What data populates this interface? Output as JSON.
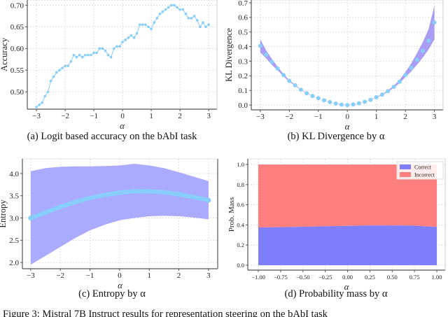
{
  "figure_caption": "Figure 3: Mistral 7B Instruct results for representation steering on the bAbI task",
  "colors": {
    "line": "#87cefa",
    "band_kl": "#9b8cf2",
    "band_entropy": "#aaaaff",
    "correct": "#7f7ffb",
    "incorrect": "#ff7f7f"
  },
  "chart_data": [
    {
      "type": "line",
      "title": "(a) Logit based accuracy on the bAbI task",
      "xlabel": "α",
      "ylabel": "Accuracy",
      "x_start": -3,
      "x_step": 0.1,
      "y": [
        0.465,
        0.47,
        0.475,
        0.49,
        0.5,
        0.525,
        0.535,
        0.545,
        0.55,
        0.555,
        0.56,
        0.56,
        0.57,
        0.585,
        0.58,
        0.585,
        0.58,
        0.585,
        0.585,
        0.585,
        0.59,
        0.59,
        0.6,
        0.6,
        0.595,
        0.585,
        0.58,
        0.6,
        0.605,
        0.605,
        0.615,
        0.62,
        0.625,
        0.63,
        0.625,
        0.635,
        0.655,
        0.655,
        0.655,
        0.65,
        0.645,
        0.66,
        0.67,
        0.68,
        0.685,
        0.69,
        0.695,
        0.7,
        0.7,
        0.695,
        0.69,
        0.69,
        0.68,
        0.67,
        0.67,
        0.675,
        0.665,
        0.65,
        0.66,
        0.65,
        0.655
      ],
      "xlim": [
        -3.32,
        3.29
      ],
      "ylim": [
        0.46,
        0.712
      ],
      "xticks": [
        -3,
        -2,
        -1,
        0,
        1,
        2,
        3
      ],
      "xtick_labels": [
        "−3",
        "−2",
        "−1",
        "0",
        "1",
        "2",
        "3"
      ],
      "yticks": [
        0.5,
        0.55,
        0.6,
        0.65,
        0.7
      ],
      "ytick_labels": [
        "0.50",
        "0.55",
        "0.60",
        "0.65",
        "0.70"
      ],
      "grid": true
    },
    {
      "type": "scatter",
      "title": "(b) KL Divergence by α",
      "xlabel": "α",
      "ylabel": "KL Divergence",
      "x_start": -3,
      "x_step": 0.2,
      "y": [
        0.405,
        0.345,
        0.295,
        0.25,
        0.205,
        0.165,
        0.135,
        0.105,
        0.08,
        0.062,
        0.047,
        0.032,
        0.02,
        0.01,
        0.003,
        0.0,
        0.004,
        0.012,
        0.022,
        0.036,
        0.053,
        0.072,
        0.095,
        0.125,
        0.16,
        0.205,
        0.255,
        0.31,
        0.37,
        0.44,
        0.565
      ],
      "band_upper": [
        0.45,
        0.375,
        0.315,
        0.262,
        0.212,
        0.17,
        0.138,
        0.107,
        0.082,
        0.063,
        0.048,
        0.033,
        0.021,
        0.011,
        0.004,
        0.001,
        0.005,
        0.013,
        0.023,
        0.037,
        0.055,
        0.075,
        0.1,
        0.132,
        0.172,
        0.225,
        0.285,
        0.355,
        0.43,
        0.52,
        0.68
      ],
      "band_lower": [
        0.36,
        0.32,
        0.275,
        0.237,
        0.197,
        0.16,
        0.132,
        0.103,
        0.078,
        0.061,
        0.046,
        0.031,
        0.019,
        0.009,
        0.002,
        0.0,
        0.003,
        0.011,
        0.021,
        0.035,
        0.051,
        0.069,
        0.09,
        0.118,
        0.15,
        0.19,
        0.23,
        0.275,
        0.325,
        0.38,
        0.45
      ],
      "xlim": [
        -3.31,
        3.3
      ],
      "ylim": [
        -0.033,
        0.719
      ],
      "xticks": [
        -3,
        -2,
        -1,
        0,
        1,
        2,
        3
      ],
      "xtick_labels": [
        "−3",
        "−2",
        "−1",
        "0",
        "1",
        "2",
        "3"
      ],
      "yticks": [
        0,
        0.1,
        0.2,
        0.3,
        0.4,
        0.5,
        0.6,
        0.7
      ],
      "ytick_labels": [
        "0.0",
        "0.1",
        "0.2",
        "0.3",
        "0.4",
        "0.5",
        "0.6",
        "0.7"
      ],
      "grid": true
    },
    {
      "type": "line",
      "title": "(c) Entropy by α",
      "xlabel": "α",
      "ylabel": "Entropy",
      "x_start": -3,
      "x_step": 0.5,
      "y": [
        3.0,
        3.12,
        3.25,
        3.36,
        3.45,
        3.52,
        3.57,
        3.6,
        3.6,
        3.58,
        3.53,
        3.47,
        3.4
      ],
      "band_upper": [
        4.05,
        4.12,
        4.15,
        4.16,
        4.16,
        4.17,
        4.18,
        4.22,
        4.18,
        4.12,
        4.03,
        3.93,
        3.83
      ],
      "band_lower": [
        1.95,
        2.15,
        2.35,
        2.55,
        2.72,
        2.85,
        2.95,
        3.0,
        3.04,
        3.05,
        3.04,
        3.01,
        2.97
      ],
      "xlim": [
        -3.28,
        3.31
      ],
      "ylim": [
        1.86,
        4.33
      ],
      "xticks": [
        -3,
        -2,
        -1,
        0,
        1,
        2,
        3
      ],
      "xtick_labels": [
        "−3",
        "−2",
        "−1",
        "0",
        "1",
        "2",
        "3"
      ],
      "yticks": [
        2,
        2.5,
        3,
        3.5,
        4
      ],
      "ytick_labels": [
        "2.0",
        "2.5",
        "3.0",
        "3.5",
        "4.0"
      ],
      "grid": true
    },
    {
      "type": "area",
      "title": "(d) Probability mass by α",
      "xlabel": "α",
      "ylabel": "Prob. Mass",
      "x_start": -1,
      "x_step": 0.25,
      "series": [
        {
          "name": "Correct",
          "values": [
            0.375,
            0.378,
            0.382,
            0.386,
            0.39,
            0.394,
            0.395,
            0.392,
            0.38
          ]
        },
        {
          "name": "Incorrect",
          "values": [
            0.625,
            0.622,
            0.618,
            0.614,
            0.61,
            0.606,
            0.605,
            0.608,
            0.62
          ]
        }
      ],
      "stacked": true,
      "legend": "top-right",
      "xlim": [
        -1.118,
        1.094
      ],
      "ylim": [
        -0.049,
        1.056
      ],
      "xticks": [
        -1,
        -0.75,
        -0.5,
        -0.25,
        0,
        0.25,
        0.5,
        0.75,
        1
      ],
      "xtick_labels": [
        "−1.00",
        "−0.75",
        "−0.50",
        "−0.25",
        "0.00",
        "0.25",
        "0.50",
        "0.75",
        "1.00"
      ],
      "yticks": [
        0,
        0.2,
        0.4,
        0.6,
        0.8,
        1.0
      ],
      "ytick_labels": [
        "0.0",
        "0.2",
        "0.4",
        "0.6",
        "0.8",
        "1.0"
      ],
      "grid": true
    }
  ]
}
